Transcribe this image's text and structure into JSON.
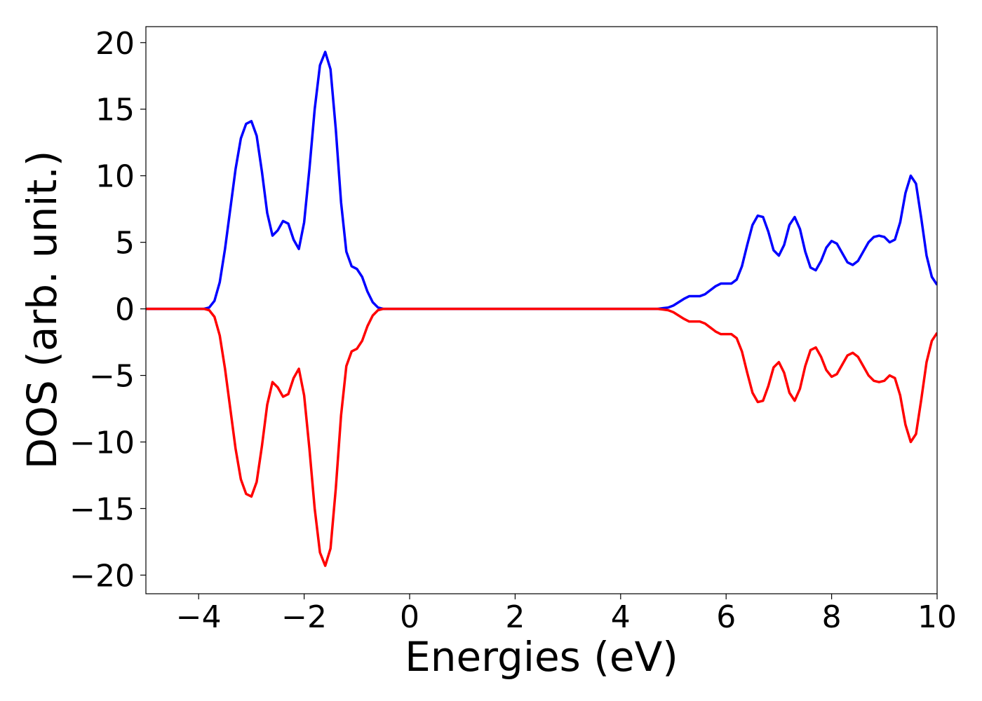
{
  "chart_data": {
    "type": "line",
    "xlabel": "Energies (eV)",
    "ylabel": "DOS (arb. unit.)",
    "xlim": [
      -5,
      10
    ],
    "ylim": [
      -21.4,
      21.2
    ],
    "xticks": [
      {
        "value": -4,
        "label": "−4"
      },
      {
        "value": -2,
        "label": "−2"
      },
      0,
      2,
      4,
      6,
      8,
      10
    ],
    "yticks": [
      {
        "value": -20,
        "label": "−20"
      },
      {
        "value": -15,
        "label": "−15"
      },
      {
        "value": -10,
        "label": "−10"
      },
      {
        "value": -5,
        "label": "−5"
      },
      0,
      5,
      10,
      15,
      20
    ],
    "grid": false,
    "x": [
      -5.0,
      -4.9,
      -4.8,
      -4.7,
      -4.6,
      -4.5,
      -4.4,
      -4.3,
      -4.2,
      -4.1,
      -4.0,
      -3.9,
      -3.8,
      -3.7,
      -3.6,
      -3.5,
      -3.4,
      -3.3,
      -3.2,
      -3.1,
      -3.0,
      -2.9,
      -2.8,
      -2.7,
      -2.6,
      -2.5,
      -2.4,
      -2.3,
      -2.2,
      -2.1,
      -2.0,
      -1.9,
      -1.8,
      -1.7,
      -1.6,
      -1.5,
      -1.4,
      -1.3,
      -1.2,
      -1.1,
      -1.0,
      -0.9,
      -0.8,
      -0.7,
      -0.6,
      -0.5,
      -0.4,
      -0.3,
      -0.2,
      -0.1,
      0.0,
      0.1,
      0.2,
      0.3,
      0.4,
      0.5,
      0.6,
      0.7,
      0.8,
      0.9,
      1.0,
      1.1,
      1.2,
      1.3,
      1.4,
      1.5,
      1.6,
      1.7,
      1.8,
      1.9,
      2.0,
      2.1,
      2.2,
      2.3,
      2.4,
      2.5,
      2.6,
      2.7,
      2.8,
      2.9,
      3.0,
      3.1,
      3.2,
      3.3,
      3.4,
      3.5,
      3.6,
      3.7,
      3.8,
      3.9,
      4.0,
      4.1,
      4.2,
      4.3,
      4.4,
      4.5,
      4.6,
      4.7,
      4.8,
      4.9,
      5.0,
      5.1,
      5.2,
      5.3,
      5.4,
      5.5,
      5.6,
      5.7,
      5.8,
      5.9,
      6.0,
      6.1,
      6.2,
      6.3,
      6.4,
      6.5,
      6.6,
      6.7,
      6.8,
      6.9,
      7.0,
      7.1,
      7.2,
      7.3,
      7.4,
      7.5,
      7.6,
      7.7,
      7.8,
      7.9,
      8.0,
      8.1,
      8.2,
      8.3,
      8.4,
      8.5,
      8.6,
      8.7,
      8.8,
      8.9,
      9.0,
      9.1,
      9.2,
      9.3,
      9.4,
      9.5,
      9.6,
      9.7,
      9.8,
      9.9,
      10.0
    ],
    "series": [
      {
        "color": "#0000ff",
        "values": [
          0,
          0,
          0,
          0,
          0,
          0,
          0,
          0,
          0,
          0,
          0,
          0,
          0.1,
          0.6,
          2,
          4.5,
          7.5,
          10.5,
          12.8,
          13.9,
          14.1,
          13,
          10.3,
          7.2,
          5.5,
          5.9,
          6.6,
          6.4,
          5.2,
          4.5,
          6.5,
          10.5,
          15,
          18.3,
          19.3,
          18,
          13.5,
          8,
          4.3,
          3.2,
          3,
          2.4,
          1.3,
          0.5,
          0.1,
          0,
          0,
          0,
          0,
          0,
          0,
          0,
          0,
          0,
          0,
          0,
          0,
          0,
          0,
          0,
          0,
          0,
          0,
          0,
          0,
          0,
          0,
          0,
          0,
          0,
          0,
          0,
          0,
          0,
          0,
          0,
          0,
          0,
          0,
          0,
          0,
          0,
          0,
          0,
          0,
          0,
          0,
          0,
          0,
          0,
          0,
          0,
          0,
          0,
          0,
          0,
          0,
          0,
          0.05,
          0.1,
          0.25,
          0.5,
          0.75,
          0.95,
          0.95,
          0.95,
          1.1,
          1.4,
          1.7,
          1.9,
          1.9,
          1.9,
          2.2,
          3.2,
          4.8,
          6.3,
          7,
          6.9,
          5.8,
          4.4,
          4,
          4.8,
          6.3,
          6.9,
          6,
          4.3,
          3.1,
          2.9,
          3.6,
          4.6,
          5.1,
          4.9,
          4.2,
          3.5,
          3.3,
          3.6,
          4.3,
          5,
          5.4,
          5.5,
          5.4,
          5,
          5.2,
          6.5,
          8.7,
          10,
          9.4,
          6.8,
          4,
          2.4,
          1.8
        ]
      },
      {
        "color": "#ff0000",
        "values": [
          0,
          0,
          0,
          0,
          0,
          0,
          0,
          0,
          0,
          0,
          0,
          0,
          -0.1,
          -0.6,
          -2,
          -4.5,
          -7.5,
          -10.5,
          -12.8,
          -13.9,
          -14.1,
          -13,
          -10.3,
          -7.2,
          -5.5,
          -5.9,
          -6.6,
          -6.4,
          -5.2,
          -4.5,
          -6.5,
          -10.5,
          -15,
          -18.3,
          -19.3,
          -18,
          -13.5,
          -8,
          -4.3,
          -3.2,
          -3,
          -2.4,
          -1.3,
          -0.5,
          -0.1,
          0,
          0,
          0,
          0,
          0,
          0,
          0,
          0,
          0,
          0,
          0,
          0,
          0,
          0,
          0,
          0,
          0,
          0,
          0,
          0,
          0,
          0,
          0,
          0,
          0,
          0,
          0,
          0,
          0,
          0,
          0,
          0,
          0,
          0,
          0,
          0,
          0,
          0,
          0,
          0,
          0,
          0,
          0,
          0,
          0,
          0,
          0,
          0,
          0,
          0,
          0,
          0,
          0,
          -0.05,
          -0.1,
          -0.25,
          -0.5,
          -0.75,
          -0.95,
          -0.95,
          -0.95,
          -1.1,
          -1.4,
          -1.7,
          -1.9,
          -1.9,
          -1.9,
          -2.2,
          -3.2,
          -4.8,
          -6.3,
          -7,
          -6.9,
          -5.8,
          -4.4,
          -4,
          -4.8,
          -6.3,
          -6.9,
          -6,
          -4.3,
          -3.1,
          -2.9,
          -3.6,
          -4.6,
          -5.1,
          -4.9,
          -4.2,
          -3.5,
          -3.3,
          -3.6,
          -4.3,
          -5,
          -5.4,
          -5.5,
          -5.4,
          -5,
          -5.2,
          -6.5,
          -8.7,
          -10,
          -9.4,
          -6.8,
          -4,
          -2.4,
          -1.8
        ]
      }
    ]
  }
}
